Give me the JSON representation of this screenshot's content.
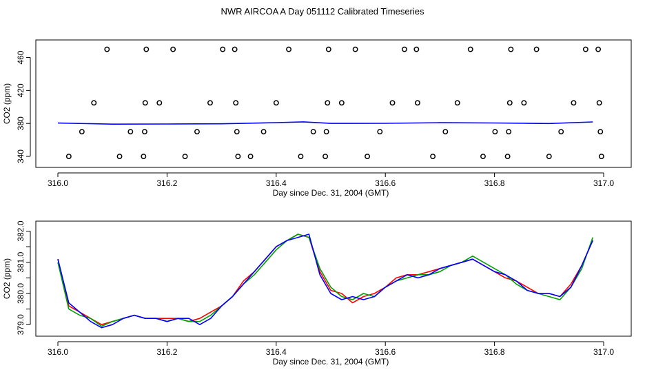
{
  "title": "NWR AIRCOA A  Day 051112  Calibrated Timeseries",
  "chart_data": [
    {
      "type": "scatter",
      "xlabel": "Day since Dec. 31, 2004 (GMT)",
      "ylabel": "CO2 (ppm)",
      "xlim": [
        316.0,
        317.0
      ],
      "ylim": [
        335,
        473
      ],
      "xticks": [
        "316.0",
        "316.2",
        "316.4",
        "316.6",
        "316.8",
        "317.0"
      ],
      "yticks": [
        "340",
        "380",
        "420",
        "460"
      ],
      "grid": false,
      "calibration_points": [
        [
          316.02,
          340
        ],
        [
          316.044,
          370
        ],
        [
          316.066,
          405
        ],
        [
          316.09,
          470
        ],
        [
          316.113,
          340
        ],
        [
          316.133,
          370
        ],
        [
          316.157,
          340
        ],
        [
          316.159,
          370
        ],
        [
          316.16,
          405
        ],
        [
          316.162,
          470
        ],
        [
          316.186,
          405
        ],
        [
          316.211,
          470
        ],
        [
          316.233,
          340
        ],
        [
          316.255,
          370
        ],
        [
          316.279,
          405
        ],
        [
          316.302,
          470
        ],
        [
          316.324,
          470
        ],
        [
          316.326,
          405
        ],
        [
          316.328,
          370
        ],
        [
          316.33,
          340
        ],
        [
          316.353,
          340
        ],
        [
          316.377,
          370
        ],
        [
          316.4,
          405
        ],
        [
          316.423,
          470
        ],
        [
          316.445,
          340
        ],
        [
          316.468,
          370
        ],
        [
          316.49,
          340
        ],
        [
          316.492,
          370
        ],
        [
          316.494,
          405
        ],
        [
          316.496,
          470
        ],
        [
          316.52,
          405
        ],
        [
          316.545,
          470
        ],
        [
          316.567,
          340
        ],
        [
          316.59,
          370
        ],
        [
          316.613,
          405
        ],
        [
          316.635,
          470
        ],
        [
          316.657,
          470
        ],
        [
          316.659,
          405
        ],
        [
          316.687,
          340
        ],
        [
          316.71,
          370
        ],
        [
          316.732,
          405
        ],
        [
          316.756,
          470
        ],
        [
          316.779,
          340
        ],
        [
          316.801,
          370
        ],
        [
          316.824,
          340
        ],
        [
          316.826,
          370
        ],
        [
          316.828,
          405
        ],
        [
          316.83,
          470
        ],
        [
          316.854,
          405
        ],
        [
          316.877,
          470
        ],
        [
          316.9,
          340
        ],
        [
          316.922,
          370
        ],
        [
          316.945,
          405
        ],
        [
          316.967,
          470
        ],
        [
          316.99,
          470
        ],
        [
          316.992,
          405
        ],
        [
          316.994,
          370
        ],
        [
          316.996,
          340
        ]
      ],
      "series": [
        {
          "color": "#0000ff",
          "x": [
            316.0,
            316.1,
            316.2,
            316.3,
            316.4,
            316.45,
            316.5,
            316.6,
            316.7,
            316.8,
            316.9,
            316.98
          ],
          "values": [
            380.5,
            379.2,
            379.3,
            379.6,
            381.0,
            381.9,
            380.1,
            380.2,
            380.9,
            380.6,
            379.9,
            381.8
          ]
        }
      ]
    },
    {
      "type": "line",
      "xlabel": "Day since Dec. 31, 2004 (GMT)",
      "ylabel": "CO2 (ppm)",
      "xlim": [
        316.0,
        317.0
      ],
      "ylim": [
        378.85,
        382.1
      ],
      "xticks": [
        "316.0",
        "316.2",
        "316.4",
        "316.6",
        "316.8",
        "317.0"
      ],
      "yticks": [
        "379.0",
        "379.5",
        "380.0",
        "380.5",
        "381.0",
        "381.5",
        "382.0"
      ],
      "grid": false,
      "x": [
        316.0,
        316.02,
        316.04,
        316.06,
        316.08,
        316.1,
        316.12,
        316.14,
        316.16,
        316.18,
        316.2,
        316.22,
        316.24,
        316.26,
        316.28,
        316.3,
        316.32,
        316.34,
        316.36,
        316.38,
        316.4,
        316.42,
        316.44,
        316.46,
        316.48,
        316.5,
        316.52,
        316.54,
        316.56,
        316.58,
        316.6,
        316.62,
        316.64,
        316.66,
        316.68,
        316.7,
        316.72,
        316.74,
        316.76,
        316.78,
        316.8,
        316.82,
        316.84,
        316.86,
        316.88,
        316.9,
        316.92,
        316.94,
        316.96,
        316.98
      ],
      "series": [
        {
          "color": "#ff0000",
          "values": [
            381.1,
            379.6,
            379.4,
            379.2,
            379.0,
            379.1,
            379.2,
            379.3,
            379.2,
            379.2,
            379.2,
            379.2,
            379.1,
            379.2,
            379.4,
            379.6,
            379.9,
            380.4,
            380.7,
            381.1,
            381.5,
            381.7,
            381.9,
            381.8,
            380.7,
            380.1,
            380.0,
            379.7,
            379.9,
            380.0,
            380.2,
            380.5,
            380.6,
            380.6,
            380.7,
            380.8,
            380.9,
            381.0,
            381.1,
            380.9,
            380.7,
            380.5,
            380.4,
            380.2,
            380.0,
            380.0,
            379.9,
            380.3,
            380.9,
            381.7
          ]
        },
        {
          "color": "#00a000",
          "values": [
            381.0,
            379.5,
            379.3,
            379.2,
            378.95,
            379.1,
            379.2,
            379.3,
            379.2,
            379.2,
            379.1,
            379.2,
            379.1,
            379.1,
            379.3,
            379.6,
            379.9,
            380.3,
            380.6,
            381.0,
            381.4,
            381.7,
            381.9,
            381.8,
            380.8,
            380.2,
            379.9,
            379.8,
            380.0,
            379.9,
            380.2,
            380.4,
            380.5,
            380.6,
            380.6,
            380.7,
            380.9,
            381.0,
            381.2,
            381.0,
            380.8,
            380.6,
            380.3,
            380.1,
            380.0,
            379.9,
            379.8,
            380.2,
            380.8,
            381.8
          ]
        },
        {
          "color": "#0000ff",
          "values": [
            381.1,
            379.7,
            379.4,
            379.1,
            378.9,
            379.0,
            379.2,
            379.3,
            379.2,
            379.2,
            379.1,
            379.2,
            379.2,
            379.0,
            379.2,
            379.6,
            379.9,
            380.3,
            380.7,
            381.1,
            381.5,
            381.7,
            381.8,
            381.9,
            380.6,
            380.0,
            379.8,
            379.9,
            379.8,
            379.9,
            380.2,
            380.4,
            380.6,
            380.5,
            380.6,
            380.8,
            380.9,
            381.0,
            381.1,
            380.9,
            380.7,
            380.6,
            380.4,
            380.1,
            380.0,
            380.0,
            379.9,
            380.2,
            380.9,
            381.7
          ]
        }
      ]
    }
  ]
}
